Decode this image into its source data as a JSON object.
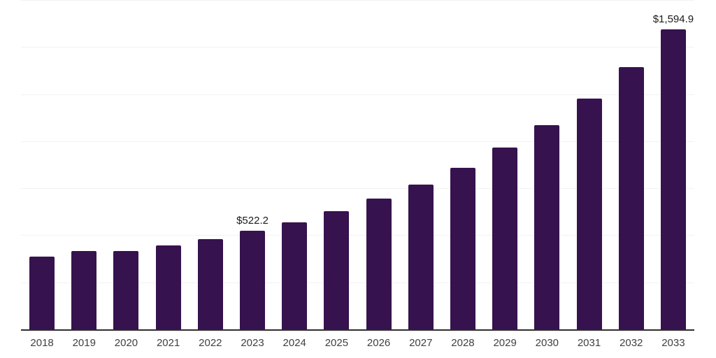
{
  "chart_data": {
    "type": "bar",
    "categories": [
      "2018",
      "2019",
      "2020",
      "2021",
      "2022",
      "2023",
      "2024",
      "2025",
      "2026",
      "2027",
      "2028",
      "2029",
      "2030",
      "2031",
      "2032",
      "2033"
    ],
    "values": [
      388,
      417,
      415,
      447,
      481,
      522.2,
      570,
      627,
      695,
      770,
      860,
      966,
      1084,
      1226,
      1394,
      1594.9
    ],
    "annotations": [
      {
        "category": "2023",
        "text": "$522.2"
      },
      {
        "category": "2033",
        "text": "$1,594.9"
      }
    ],
    "xlabel": "",
    "ylabel": "",
    "ylim": [
      0,
      1750
    ],
    "grid_step": 250,
    "grid": true,
    "legend": false,
    "y_axis_labels_visible": false,
    "colors": {
      "bar": "#36124e",
      "axis_line": "#2e2e2e",
      "gridline": "#f2f2f4",
      "tick_label": "#404040",
      "value_label": "#1a1a1a",
      "background": "#ffffff"
    }
  }
}
